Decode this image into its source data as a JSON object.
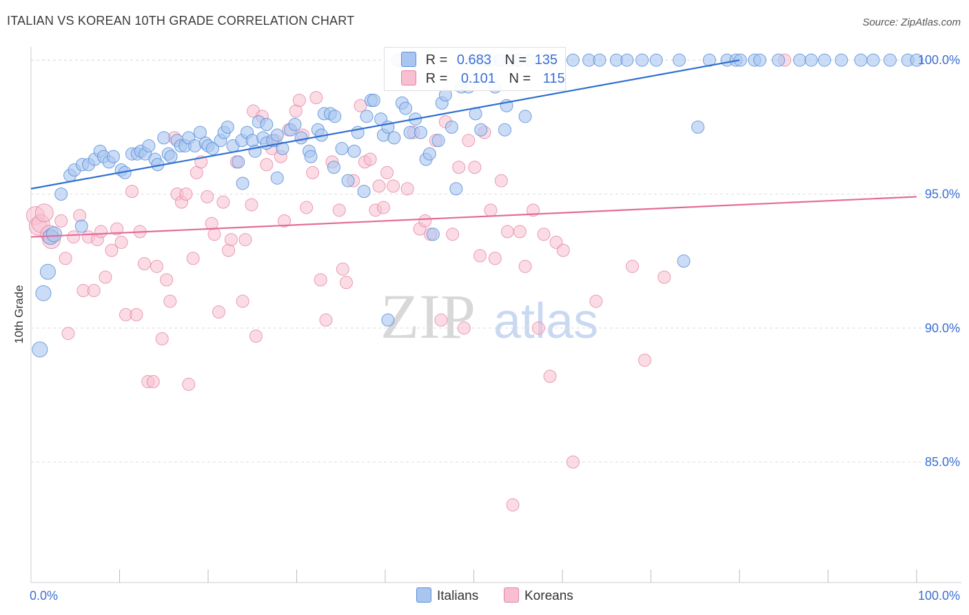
{
  "title": "ITALIAN VS KOREAN 10TH GRADE CORRELATION CHART",
  "source": "Source: ZipAtlas.com",
  "watermark": {
    "part1": "ZIP",
    "part2": "atlas"
  },
  "colors": {
    "italians_fill": "#a9c6f0",
    "italians_stroke": "#5b8ed8",
    "italians_line": "#2e6fd1",
    "koreans_fill": "#f7bfd0",
    "koreans_stroke": "#e584a4",
    "koreans_line": "#e46b97",
    "axis_text": "#3b6fd4"
  },
  "legend": {
    "italians": {
      "r_label": "R =",
      "r_value": "0.683",
      "n_label": "N =",
      "n_value": "135"
    },
    "koreans": {
      "r_label": "R =",
      "r_value": "0.101",
      "n_label": "N =",
      "n_value": "115"
    }
  },
  "bottom_legend": {
    "italians": "Italians",
    "koreans": "Koreans"
  },
  "chart_data": {
    "type": "scatter",
    "title": "ITALIAN VS KOREAN 10TH GRADE CORRELATION CHART",
    "ylabel": "10th Grade",
    "xlabel": "",
    "xlim": [
      0,
      100
    ],
    "ylim": [
      80.5,
      100.7
    ],
    "x_tick_labels": [
      "0.0%",
      "100.0%"
    ],
    "y_ticks": [
      85,
      90,
      95,
      100
    ],
    "y_tick_labels": [
      "85.0%",
      "90.0%",
      "95.0%",
      "100.0%"
    ],
    "grid": true,
    "legend_position": "top-center",
    "series": [
      {
        "name": "Italians",
        "trend": {
          "x": [
            0,
            80
          ],
          "y": [
            95.2,
            100.0
          ]
        },
        "points": [
          [
            1,
            89.2
          ],
          [
            1.4,
            91.3
          ],
          [
            1.9,
            92.1
          ],
          [
            2.2,
            93.4
          ],
          [
            2.6,
            93.5
          ],
          [
            3.4,
            95.0
          ],
          [
            4.4,
            95.7
          ],
          [
            4.9,
            95.9
          ],
          [
            5.7,
            93.8
          ],
          [
            5.8,
            96.1
          ],
          [
            6.5,
            96.1
          ],
          [
            7.2,
            96.3
          ],
          [
            7.8,
            96.6
          ],
          [
            8.2,
            96.4
          ],
          [
            8.8,
            96.2
          ],
          [
            9.3,
            96.4
          ],
          [
            10.2,
            95.9
          ],
          [
            10.6,
            95.8
          ],
          [
            11.4,
            96.5
          ],
          [
            12.0,
            96.5
          ],
          [
            12.4,
            96.6
          ],
          [
            12.9,
            96.5
          ],
          [
            13.3,
            96.8
          ],
          [
            14.0,
            96.3
          ],
          [
            14.3,
            96.1
          ],
          [
            15.0,
            97.1
          ],
          [
            15.5,
            96.5
          ],
          [
            15.8,
            96.4
          ],
          [
            16.5,
            97.0
          ],
          [
            16.9,
            96.8
          ],
          [
            17.4,
            96.8
          ],
          [
            17.8,
            97.1
          ],
          [
            18.5,
            96.8
          ],
          [
            19.1,
            97.3
          ],
          [
            19.7,
            96.9
          ],
          [
            20.0,
            96.8
          ],
          [
            20.5,
            96.7
          ],
          [
            21.4,
            97.0
          ],
          [
            21.8,
            97.3
          ],
          [
            22.2,
            97.5
          ],
          [
            22.8,
            96.8
          ],
          [
            23.4,
            96.2
          ],
          [
            23.8,
            97.0
          ],
          [
            24.4,
            97.3
          ],
          [
            25.0,
            97.0
          ],
          [
            25.3,
            96.6
          ],
          [
            25.7,
            97.7
          ],
          [
            26.2,
            97.1
          ],
          [
            26.6,
            96.9
          ],
          [
            27.3,
            97.0
          ],
          [
            27.8,
            97.2
          ],
          [
            28.4,
            96.7
          ],
          [
            29.3,
            97.4
          ],
          [
            29.8,
            97.6
          ],
          [
            30.5,
            97.1
          ],
          [
            31.4,
            96.6
          ],
          [
            31.6,
            96.4
          ],
          [
            32.4,
            97.4
          ],
          [
            32.8,
            97.2
          ],
          [
            33.1,
            98.0
          ],
          [
            33.8,
            98.0
          ],
          [
            34.3,
            97.9
          ],
          [
            35.1,
            96.7
          ],
          [
            35.8,
            95.5
          ],
          [
            36.5,
            96.6
          ],
          [
            36.9,
            97.3
          ],
          [
            37.6,
            95.1
          ],
          [
            37.9,
            97.9
          ],
          [
            38.4,
            98.5
          ],
          [
            38.7,
            98.5
          ],
          [
            39.5,
            97.8
          ],
          [
            39.8,
            97.2
          ],
          [
            40.3,
            97.5
          ],
          [
            41.0,
            97.1
          ],
          [
            41.4,
            100.0
          ],
          [
            41.9,
            98.4
          ],
          [
            42.3,
            98.2
          ],
          [
            42.8,
            97.3
          ],
          [
            43.4,
            97.8
          ],
          [
            44.0,
            97.3
          ],
          [
            44.6,
            96.3
          ],
          [
            45.0,
            96.5
          ],
          [
            45.4,
            93.5
          ],
          [
            46.0,
            97.0
          ],
          [
            46.4,
            98.4
          ],
          [
            46.8,
            98.7
          ],
          [
            47.5,
            97.5
          ],
          [
            48.0,
            95.2
          ],
          [
            48.6,
            99.0
          ],
          [
            49.4,
            99.0
          ],
          [
            50.0,
            100.0
          ],
          [
            50.8,
            97.4
          ],
          [
            51.3,
            100.0
          ],
          [
            51.8,
            100.0
          ],
          [
            52.4,
            99.0
          ],
          [
            53.0,
            100.0
          ],
          [
            53.5,
            97.4
          ],
          [
            54.1,
            100.0
          ],
          [
            55.0,
            100.0
          ],
          [
            56.3,
            100.0
          ],
          [
            58.7,
            100.0
          ],
          [
            61.2,
            100.0
          ],
          [
            63.0,
            100.0
          ],
          [
            64.2,
            100.0
          ],
          [
            66.1,
            100.0
          ],
          [
            67.3,
            100.0
          ],
          [
            69.0,
            100.0
          ],
          [
            70.6,
            100.0
          ],
          [
            73.2,
            100.0
          ],
          [
            75.3,
            97.5
          ],
          [
            76.6,
            100.0
          ],
          [
            78.6,
            100.0
          ],
          [
            79.6,
            100.0
          ],
          [
            80.1,
            100.0
          ],
          [
            81.7,
            100.0
          ],
          [
            82.3,
            100.0
          ],
          [
            84.4,
            100.0
          ],
          [
            86.8,
            100.0
          ],
          [
            88.1,
            100.0
          ],
          [
            89.6,
            100.0
          ],
          [
            91.5,
            100.0
          ],
          [
            93.7,
            100.0
          ],
          [
            95.1,
            100.0
          ],
          [
            97.0,
            100.0
          ],
          [
            99.0,
            100.0
          ],
          [
            100,
            100.0
          ],
          [
            73.7,
            92.5
          ],
          [
            40.3,
            90.3
          ],
          [
            34.2,
            96.0
          ],
          [
            27.8,
            95.6
          ],
          [
            23.9,
            95.4
          ],
          [
            26.6,
            97.6
          ],
          [
            50.2,
            98.0
          ],
          [
            53.7,
            98.3
          ],
          [
            55.8,
            97.9
          ]
        ]
      },
      {
        "name": "Koreans",
        "trend": {
          "x": [
            0,
            100
          ],
          "y": [
            93.4,
            94.9
          ]
        },
        "points": [
          [
            0.5,
            94.2
          ],
          [
            0.8,
            93.8
          ],
          [
            1.1,
            93.9
          ],
          [
            1.5,
            94.3
          ],
          [
            2.1,
            93.5
          ],
          [
            2.3,
            93.3
          ],
          [
            3.4,
            94.0
          ],
          [
            3.9,
            92.6
          ],
          [
            4.2,
            89.8
          ],
          [
            4.8,
            93.4
          ],
          [
            5.5,
            94.2
          ],
          [
            5.9,
            91.4
          ],
          [
            6.5,
            93.4
          ],
          [
            7.1,
            91.4
          ],
          [
            7.5,
            93.3
          ],
          [
            7.9,
            93.6
          ],
          [
            8.4,
            91.9
          ],
          [
            9.1,
            92.9
          ],
          [
            9.7,
            93.7
          ],
          [
            10.2,
            93.2
          ],
          [
            10.7,
            90.5
          ],
          [
            11.4,
            95.1
          ],
          [
            11.9,
            90.5
          ],
          [
            12.3,
            93.6
          ],
          [
            12.8,
            92.4
          ],
          [
            13.2,
            88.0
          ],
          [
            13.8,
            88.0
          ],
          [
            14.2,
            92.3
          ],
          [
            14.8,
            89.6
          ],
          [
            15.3,
            91.8
          ],
          [
            15.7,
            91.0
          ],
          [
            16.2,
            97.1
          ],
          [
            16.5,
            95.0
          ],
          [
            17.0,
            94.7
          ],
          [
            17.5,
            95.0
          ],
          [
            17.8,
            87.9
          ],
          [
            18.3,
            92.6
          ],
          [
            18.7,
            95.8
          ],
          [
            19.2,
            96.2
          ],
          [
            19.9,
            94.9
          ],
          [
            20.4,
            93.9
          ],
          [
            20.7,
            93.5
          ],
          [
            21.2,
            90.6
          ],
          [
            21.7,
            94.7
          ],
          [
            22.3,
            92.9
          ],
          [
            22.6,
            93.3
          ],
          [
            23.2,
            96.2
          ],
          [
            23.9,
            91.0
          ],
          [
            24.2,
            93.3
          ],
          [
            24.9,
            94.6
          ],
          [
            25.1,
            98.1
          ],
          [
            25.4,
            89.7
          ],
          [
            26.1,
            97.9
          ],
          [
            26.6,
            96.1
          ],
          [
            27.2,
            96.7
          ],
          [
            27.6,
            97.0
          ],
          [
            28.2,
            96.4
          ],
          [
            28.6,
            94.0
          ],
          [
            29.1,
            97.4
          ],
          [
            29.9,
            98.1
          ],
          [
            30.3,
            98.5
          ],
          [
            30.7,
            97.2
          ],
          [
            31.1,
            94.5
          ],
          [
            31.8,
            95.8
          ],
          [
            32.2,
            98.6
          ],
          [
            32.7,
            91.8
          ],
          [
            33.3,
            90.3
          ],
          [
            34.0,
            96.2
          ],
          [
            34.8,
            94.4
          ],
          [
            35.2,
            92.2
          ],
          [
            35.6,
            91.7
          ],
          [
            36.4,
            95.5
          ],
          [
            37.2,
            98.3
          ],
          [
            37.7,
            96.2
          ],
          [
            38.3,
            96.3
          ],
          [
            38.9,
            94.4
          ],
          [
            39.3,
            95.3
          ],
          [
            39.8,
            94.5
          ],
          [
            40.2,
            95.8
          ],
          [
            40.9,
            95.3
          ],
          [
            41.7,
            100.0
          ],
          [
            42.5,
            95.2
          ],
          [
            43.2,
            97.3
          ],
          [
            43.9,
            93.7
          ],
          [
            44.5,
            94.0
          ],
          [
            45.1,
            93.5
          ],
          [
            45.7,
            97.0
          ],
          [
            46.3,
            90.3
          ],
          [
            46.8,
            97.7
          ],
          [
            47.6,
            93.5
          ],
          [
            48.3,
            96.0
          ],
          [
            48.9,
            90.0
          ],
          [
            49.4,
            97.0
          ],
          [
            50.1,
            96.0
          ],
          [
            50.7,
            92.7
          ],
          [
            51.2,
            97.3
          ],
          [
            51.9,
            94.4
          ],
          [
            52.4,
            92.6
          ],
          [
            53.1,
            95.5
          ],
          [
            53.8,
            93.6
          ],
          [
            54.4,
            83.4
          ],
          [
            55.2,
            93.6
          ],
          [
            55.8,
            92.3
          ],
          [
            56.7,
            94.4
          ],
          [
            57.3,
            90.0
          ],
          [
            57.9,
            93.5
          ],
          [
            58.6,
            88.2
          ],
          [
            59.3,
            93.2
          ],
          [
            60.1,
            92.9
          ],
          [
            61.2,
            85.0
          ],
          [
            63.8,
            91.0
          ],
          [
            67.9,
            92.3
          ],
          [
            69.3,
            88.8
          ],
          [
            71.5,
            91.9
          ],
          [
            85.1,
            100.0
          ]
        ]
      }
    ]
  }
}
